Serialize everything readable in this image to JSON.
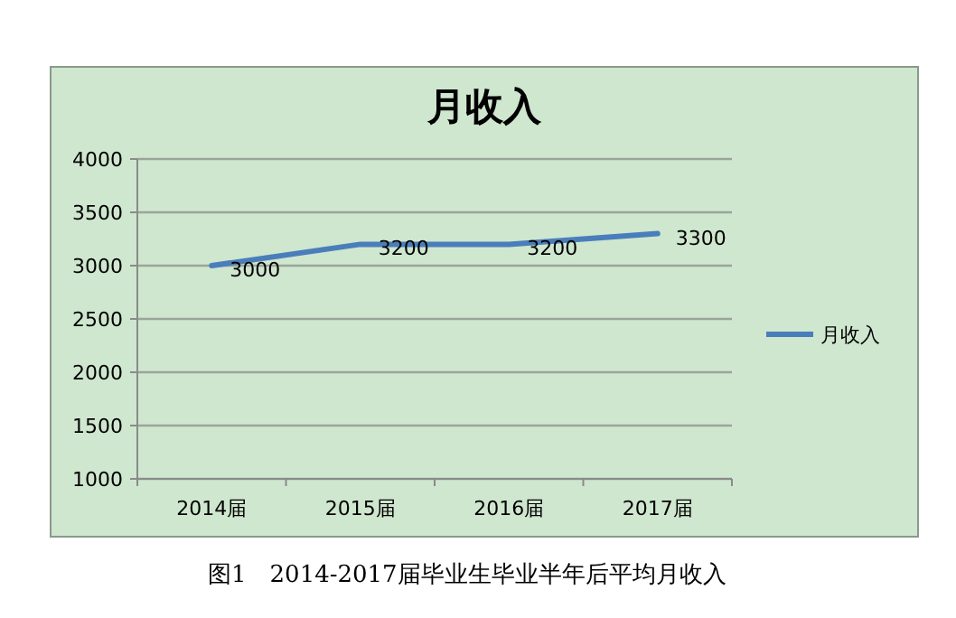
{
  "chart_data": {
    "type": "line",
    "title": "月收入",
    "categories": [
      "2014届",
      "2015届",
      "2016届",
      "2017届"
    ],
    "series": [
      {
        "name": "月收入",
        "color": "#4a7ebb",
        "values": [
          3000,
          3200,
          3200,
          3300
        ]
      }
    ],
    "ylim": [
      1000,
      4000
    ],
    "yticks": [
      1000,
      1500,
      2000,
      2500,
      3000,
      3500,
      4000
    ],
    "grid": "y",
    "legend": "right",
    "data_labels": true,
    "marker": "none",
    "line_style": "solid",
    "annotations": [
      "图1　2014-2017届毕业生毕业半年后平均月收入"
    ]
  }
}
